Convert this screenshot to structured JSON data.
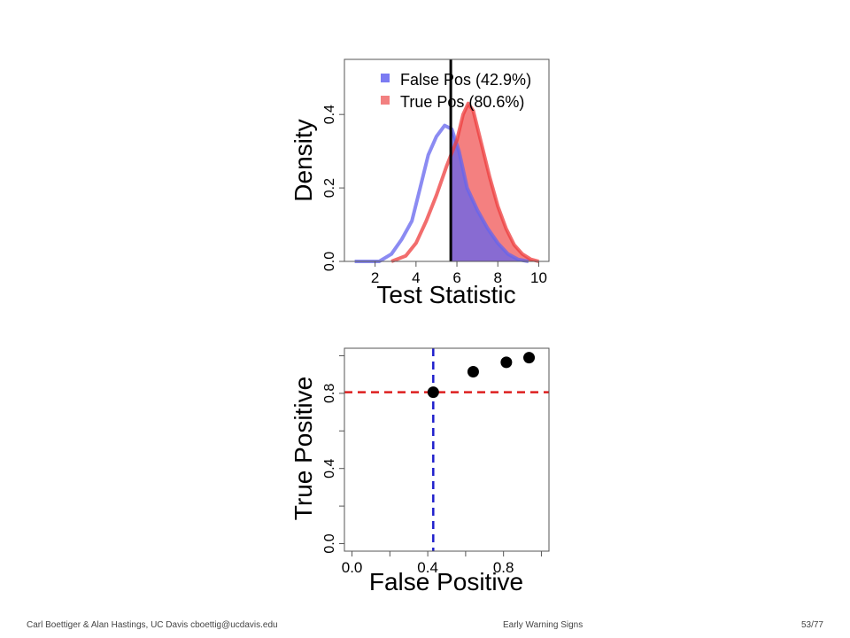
{
  "colors": {
    "false_pos": "#6464ee",
    "true_pos": "#ee3c3c",
    "threshold": "#000000",
    "ref_h": "#dd1f1f",
    "ref_v": "#1f1fcc",
    "points": "#000000"
  },
  "footer": {
    "left": "Carl Boettiger & Alan Hastings, UC Davis cboettig@ucdavis.edu",
    "center": "Early Warning Signs",
    "right": "53/77"
  },
  "chart_data": [
    {
      "type": "area",
      "xlabel": "Test Statistic",
      "ylabel": "Density",
      "xlim": [
        0.5,
        10.5
      ],
      "ylim": [
        0,
        0.55
      ],
      "x_ticks": [
        "2",
        "4",
        "6",
        "8",
        "10"
      ],
      "y_ticks": [
        "0.0",
        "0.2",
        "0.4"
      ],
      "threshold": 5.7,
      "legend_position": "top-right",
      "series": [
        {
          "name": "False Pos (42.9%)",
          "x": [
            1.0,
            2.2,
            2.8,
            3.3,
            3.8,
            4.2,
            4.6,
            5.0,
            5.4,
            5.75,
            6.1,
            6.5,
            7.0,
            7.5,
            8.0,
            8.5,
            9.0,
            9.5
          ],
          "y": [
            0.0,
            0.0,
            0.02,
            0.06,
            0.11,
            0.2,
            0.29,
            0.34,
            0.37,
            0.36,
            0.3,
            0.2,
            0.14,
            0.09,
            0.05,
            0.02,
            0.005,
            0.0
          ]
        },
        {
          "name": "True Pos (80.6%)",
          "x": [
            2.8,
            3.5,
            4.0,
            4.5,
            5.0,
            5.5,
            6.0,
            6.3,
            6.55,
            6.8,
            7.2,
            7.6,
            8.0,
            8.4,
            8.8,
            9.2,
            9.6,
            10.0
          ],
          "y": [
            0.0,
            0.015,
            0.05,
            0.11,
            0.18,
            0.26,
            0.33,
            0.4,
            0.43,
            0.41,
            0.32,
            0.23,
            0.15,
            0.09,
            0.045,
            0.02,
            0.006,
            0.0
          ]
        }
      ]
    },
    {
      "type": "scatter",
      "xlabel": "False Positive",
      "ylabel": "True Positive",
      "xlim": [
        -0.04,
        1.04
      ],
      "ylim": [
        -0.04,
        1.04
      ],
      "x_ticks": [
        "0.0",
        "0.4",
        "0.8"
      ],
      "y_ticks": [
        "0.0",
        "0.4",
        "0.8"
      ],
      "ref_x": 0.429,
      "ref_y": 0.806,
      "points": [
        {
          "x": 0.429,
          "y": 0.806
        },
        {
          "x": 0.64,
          "y": 0.915
        },
        {
          "x": 0.815,
          "y": 0.965
        },
        {
          "x": 0.935,
          "y": 0.99
        }
      ]
    }
  ]
}
